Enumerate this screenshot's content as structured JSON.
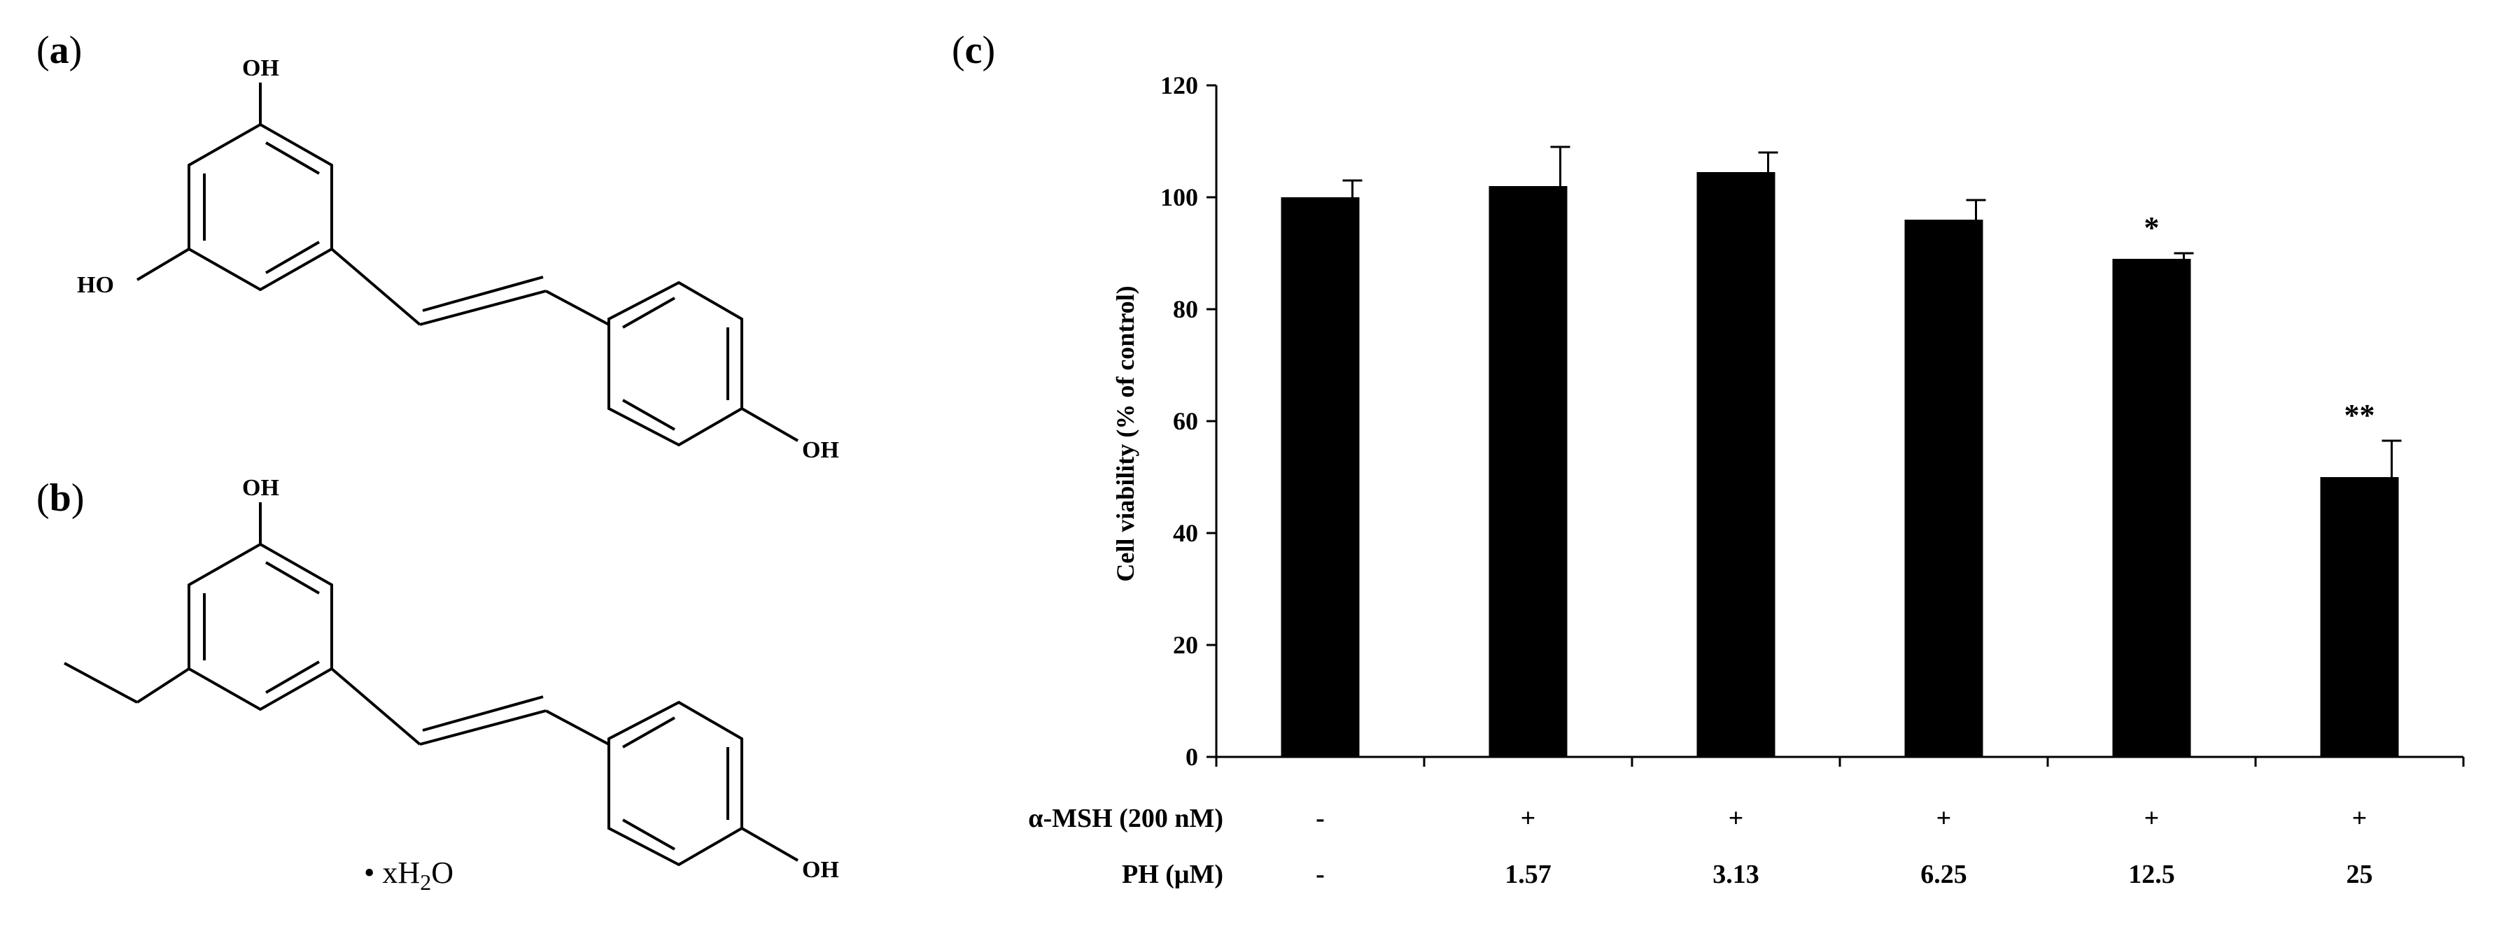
{
  "panels": {
    "a_label": "a",
    "b_label": "b",
    "c_label": "c"
  },
  "structure_a": {
    "atoms": [
      "OH",
      "HO",
      "OH"
    ]
  },
  "structure_b": {
    "atoms": [
      "OH",
      "OH"
    ],
    "hydrate": "• xH",
    "hydrate_sub": "2",
    "hydrate_tail": "O"
  },
  "chart_data": {
    "type": "bar",
    "ylabel": "Cell viability  (% of control)",
    "ylim": [
      0,
      120
    ],
    "yticks": [
      "0",
      "20",
      "40",
      "60",
      "80",
      "100",
      "120"
    ],
    "values": [
      100,
      102,
      104.5,
      96,
      89,
      50
    ],
    "errors": [
      3,
      7,
      3.5,
      3.5,
      1,
      6.5
    ],
    "significance": [
      "",
      "",
      "",
      "",
      "*",
      "**"
    ],
    "bar_color": "#000000",
    "grid": false,
    "rows": [
      {
        "label": "α-MSH (200 nM)",
        "values": [
          "-",
          "+",
          "+",
          "+",
          "+",
          "+"
        ]
      },
      {
        "label": "PH (μM)",
        "values": [
          "-",
          "1.57",
          "3.13",
          "6.25",
          "12.5",
          "25"
        ]
      }
    ]
  }
}
